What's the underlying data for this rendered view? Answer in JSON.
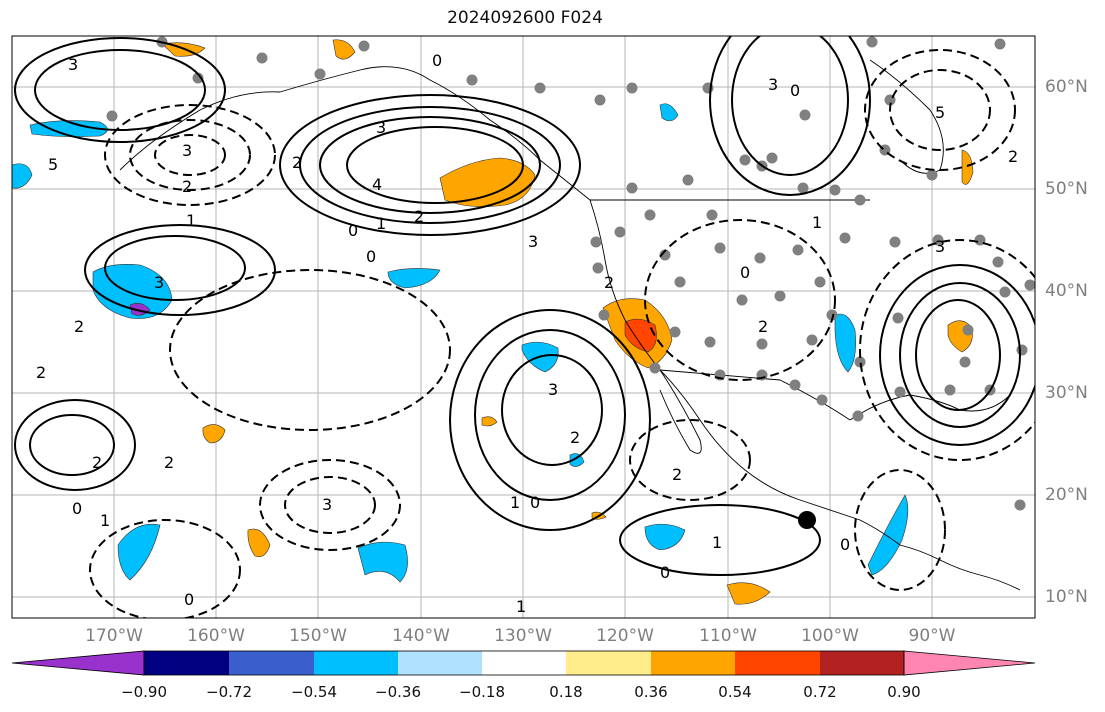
{
  "title": "2024092600 F024",
  "lat_labels": [
    "60°N",
    "50°N",
    "40°N",
    "30°N",
    "20°N",
    "10°N"
  ],
  "lon_labels": [
    "170°W",
    "160°W",
    "150°W",
    "140°W",
    "130°W",
    "120°W",
    "110°W",
    "100°W",
    "90°W"
  ],
  "colorbar": {
    "colors": [
      "#9932cc",
      "#000080",
      "#3a5fcd",
      "#00bfff",
      "#b0e2ff",
      "#ffffff",
      "#ffec8b",
      "#ffa500",
      "#ff4500",
      "#b22222",
      "#ff86b0"
    ],
    "labels": [
      "−0.90",
      "−0.72",
      "−0.54",
      "−0.36",
      "−0.18",
      "0.18",
      "0.36",
      "0.54",
      "0.72",
      "0.90"
    ]
  },
  "contour_labels": {
    "pos": [
      "3",
      "2",
      "1",
      "3",
      "4",
      "2",
      "1",
      "0",
      "3",
      "2",
      "3",
      "1",
      "0",
      "1",
      "2",
      "0",
      "1",
      "3",
      "0"
    ],
    "neg": [
      "3",
      "2",
      "0",
      "5",
      "0",
      "3",
      "2",
      "2",
      "2",
      "2",
      "1",
      "2",
      "0",
      "0",
      "2",
      "5",
      "0",
      "3",
      "3",
      "0",
      "2",
      "1"
    ]
  },
  "fill_colors": {
    "blue": "#00bfff",
    "orange": "#ffa500",
    "red": "#ff4500",
    "purple": "#9932cc"
  },
  "marker_colors": {
    "station": "#808080",
    "storm": "#000000"
  }
}
